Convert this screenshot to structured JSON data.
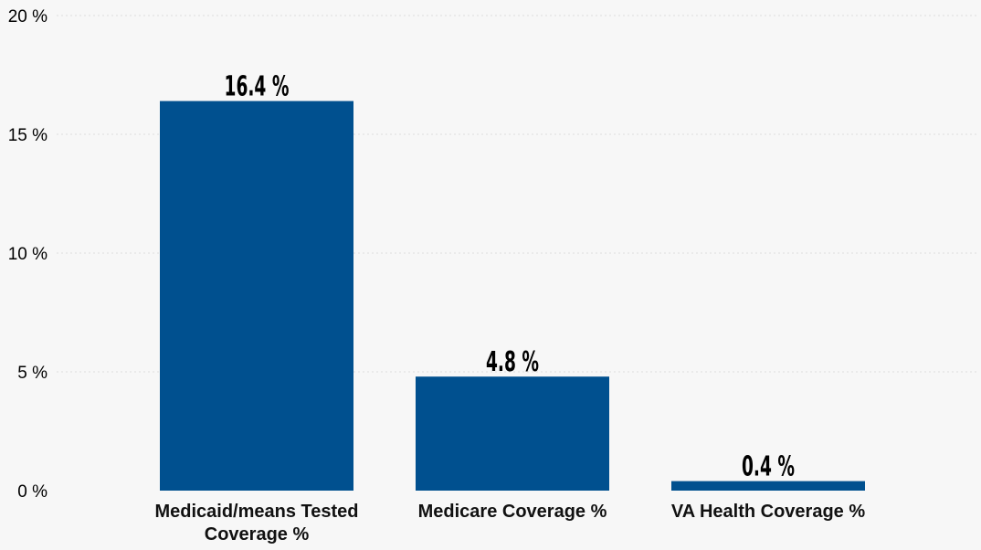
{
  "chart_data": {
    "type": "bar",
    "title": "",
    "xlabel": "",
    "ylabel": "",
    "categories": [
      [
        "Medicaid/means Tested",
        "Coverage %"
      ],
      [
        "Medicare Coverage %"
      ],
      [
        "VA Health Coverage %"
      ]
    ],
    "values": [
      16.4,
      4.8,
      0.4
    ],
    "value_labels": [
      "16.4 %",
      "4.8 %",
      "0.4 %"
    ],
    "ylim": [
      0,
      20
    ],
    "yticks": [
      0,
      5,
      10,
      15,
      20
    ],
    "ytick_labels": [
      "0 %",
      "5 %",
      "10 %",
      "15 %",
      "20 %"
    ],
    "grid": true,
    "bar_color": "#00508f",
    "background_color": "#f7f7f7"
  }
}
